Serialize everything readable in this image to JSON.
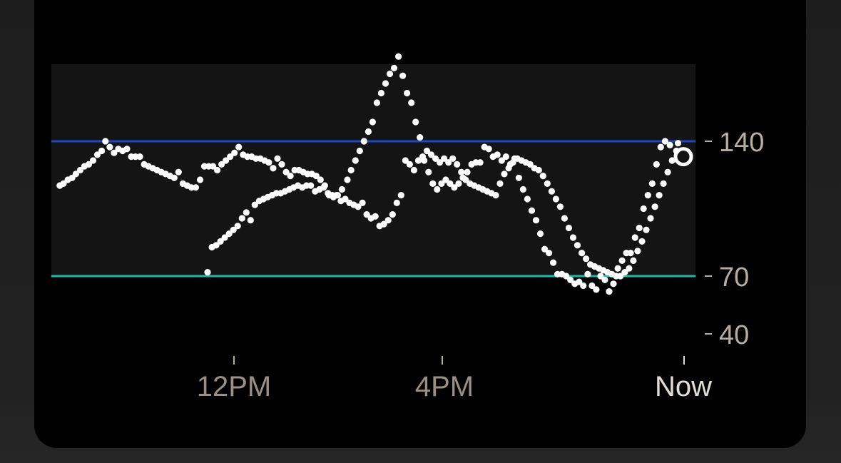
{
  "chart_data": {
    "type": "scatter",
    "title": "",
    "xlabel": "",
    "ylabel": "",
    "y_ticks": [
      "140",
      "70",
      "40"
    ],
    "x_ticks": [
      "12PM",
      "4PM",
      "Now"
    ],
    "ylim": [
      40,
      180
    ],
    "x_domain_hours": [
      8.5,
      21.25
    ],
    "target_range": {
      "low": 70,
      "high": 140
    },
    "colors": {
      "background": "#000000",
      "range_band": "#141414",
      "high_line": "#1f45c9",
      "low_line": "#19b8b1",
      "points": "#ffffff",
      "tick_label": "#b7aea3",
      "now_label": "#e2dcd6"
    },
    "points": [
      [
        8.65,
        117
      ],
      [
        8.72,
        118
      ],
      [
        8.8,
        120
      ],
      [
        8.88,
        121
      ],
      [
        8.95,
        123
      ],
      [
        9.03,
        125
      ],
      [
        9.11,
        127
      ],
      [
        9.19,
        128
      ],
      [
        9.27,
        130
      ],
      [
        9.35,
        133
      ],
      [
        9.43,
        135
      ],
      [
        9.5,
        140
      ],
      [
        9.58,
        137
      ],
      [
        9.66,
        134
      ],
      [
        9.74,
        136
      ],
      [
        9.82,
        135
      ],
      [
        9.9,
        136
      ],
      [
        9.98,
        132
      ],
      [
        10.06,
        132
      ],
      [
        10.14,
        132
      ],
      [
        10.22,
        128
      ],
      [
        10.3,
        127
      ],
      [
        10.38,
        126
      ],
      [
        10.46,
        125
      ],
      [
        10.54,
        124
      ],
      [
        10.62,
        123
      ],
      [
        10.7,
        122
      ],
      [
        10.78,
        121
      ],
      [
        10.86,
        124
      ],
      [
        10.94,
        118
      ],
      [
        11.02,
        117
      ],
      [
        11.1,
        116
      ],
      [
        11.18,
        116
      ],
      [
        11.26,
        120
      ],
      [
        11.34,
        127
      ],
      [
        11.42,
        127
      ],
      [
        11.5,
        127
      ],
      [
        11.58,
        125
      ],
      [
        11.66,
        128
      ],
      [
        11.74,
        130
      ],
      [
        11.82,
        132
      ],
      [
        11.9,
        134
      ],
      [
        11.98,
        137
      ],
      [
        12.06,
        133
      ],
      [
        12.14,
        132
      ],
      [
        12.22,
        132
      ],
      [
        12.3,
        131
      ],
      [
        12.38,
        131
      ],
      [
        12.46,
        130
      ],
      [
        12.54,
        129
      ],
      [
        12.62,
        126
      ],
      [
        12.7,
        131
      ],
      [
        12.78,
        128
      ],
      [
        12.86,
        124
      ],
      [
        12.94,
        122
      ],
      [
        13.02,
        125
      ],
      [
        13.1,
        125
      ],
      [
        13.18,
        124
      ],
      [
        13.26,
        123
      ],
      [
        13.34,
        123
      ],
      [
        13.42,
        122
      ],
      [
        13.5,
        120
      ],
      [
        13.58,
        117
      ],
      [
        13.66,
        112
      ],
      [
        13.74,
        111
      ],
      [
        13.82,
        112
      ],
      [
        13.9,
        115
      ],
      [
        14.0,
        120
      ],
      [
        14.07,
        125
      ],
      [
        14.15,
        130
      ],
      [
        14.23,
        135
      ],
      [
        14.31,
        140
      ],
      [
        14.39,
        145
      ],
      [
        14.47,
        150
      ],
      [
        14.55,
        160
      ],
      [
        14.63,
        165
      ],
      [
        14.71,
        170
      ],
      [
        14.79,
        175
      ],
      [
        14.87,
        178
      ],
      [
        14.95,
        184
      ],
      [
        15.03,
        174
      ],
      [
        15.11,
        165
      ],
      [
        15.19,
        160
      ],
      [
        15.27,
        150
      ],
      [
        15.35,
        142
      ],
      [
        15.43,
        130
      ],
      [
        15.51,
        124
      ],
      [
        15.59,
        118
      ],
      [
        15.67,
        115
      ],
      [
        15.75,
        118
      ],
      [
        15.83,
        120
      ],
      [
        15.91,
        118
      ],
      [
        15.99,
        116
      ],
      [
        16.07,
        118
      ],
      [
        16.15,
        121
      ],
      [
        16.23,
        124
      ],
      [
        16.31,
        128
      ],
      [
        16.39,
        129
      ],
      [
        16.47,
        129
      ],
      [
        16.55,
        137
      ],
      [
        16.63,
        136
      ],
      [
        16.71,
        132
      ],
      [
        16.79,
        133
      ],
      [
        16.87,
        130
      ],
      [
        16.95,
        132
      ],
      [
        17.03,
        128
      ],
      [
        17.11,
        131
      ],
      [
        17.19,
        121
      ],
      [
        17.27,
        115
      ],
      [
        17.35,
        110
      ],
      [
        17.43,
        104
      ],
      [
        17.51,
        99
      ],
      [
        17.59,
        92
      ],
      [
        17.67,
        84
      ],
      [
        17.75,
        82
      ],
      [
        17.83,
        77
      ],
      [
        17.91,
        71
      ],
      [
        17.99,
        71
      ],
      [
        18.07,
        70
      ],
      [
        18.15,
        68
      ],
      [
        18.23,
        66
      ],
      [
        18.31,
        67
      ],
      [
        18.39,
        65
      ],
      [
        18.47,
        71
      ],
      [
        18.55,
        65
      ],
      [
        18.63,
        63
      ],
      [
        18.71,
        70
      ],
      [
        18.79,
        68
      ],
      [
        18.87,
        62
      ],
      [
        18.95,
        66
      ],
      [
        19.03,
        74
      ],
      [
        19.11,
        78
      ],
      [
        19.19,
        82
      ],
      [
        19.27,
        82
      ],
      [
        19.35,
        90
      ],
      [
        19.43,
        95
      ],
      [
        19.51,
        105
      ],
      [
        19.59,
        112
      ],
      [
        19.67,
        118
      ],
      [
        19.75,
        128
      ],
      [
        19.83,
        137
      ],
      [
        19.91,
        140
      ],
      [
        20.0,
        138
      ],
      [
        20.15,
        139
      ],
      [
        11.4,
        72
      ],
      [
        11.48,
        85
      ],
      [
        11.56,
        86
      ],
      [
        11.64,
        88
      ],
      [
        11.72,
        90
      ],
      [
        11.8,
        92
      ],
      [
        11.88,
        94
      ],
      [
        11.96,
        96
      ],
      [
        12.04,
        100
      ],
      [
        12.12,
        103
      ],
      [
        12.2,
        99
      ],
      [
        12.28,
        107
      ],
      [
        12.36,
        109
      ],
      [
        12.44,
        110
      ],
      [
        12.52,
        111
      ],
      [
        12.6,
        112
      ],
      [
        12.68,
        113
      ],
      [
        12.76,
        113
      ],
      [
        12.84,
        114
      ],
      [
        12.92,
        115
      ],
      [
        13.0,
        116
      ],
      [
        13.08,
        117
      ],
      [
        13.16,
        116
      ],
      [
        13.24,
        117
      ],
      [
        13.32,
        117
      ],
      [
        13.4,
        114
      ],
      [
        13.48,
        115
      ],
      [
        13.56,
        116
      ],
      [
        13.64,
        113
      ],
      [
        13.72,
        112
      ],
      [
        13.8,
        112
      ],
      [
        13.88,
        109
      ],
      [
        13.96,
        110
      ],
      [
        14.04,
        108
      ],
      [
        14.12,
        107
      ],
      [
        14.2,
        106
      ],
      [
        14.28,
        108
      ],
      [
        14.36,
        102
      ],
      [
        14.44,
        100
      ],
      [
        14.52,
        101
      ],
      [
        14.6,
        96
      ],
      [
        14.68,
        97
      ],
      [
        14.76,
        99
      ],
      [
        14.84,
        102
      ],
      [
        14.92,
        108
      ],
      [
        15.0,
        112
      ],
      [
        15.08,
        130
      ],
      [
        15.16,
        128
      ],
      [
        15.24,
        125
      ],
      [
        15.32,
        130
      ],
      [
        15.4,
        132
      ],
      [
        15.48,
        135
      ],
      [
        15.56,
        133
      ],
      [
        15.64,
        131
      ],
      [
        15.72,
        129
      ],
      [
        15.8,
        131
      ],
      [
        15.88,
        129
      ],
      [
        15.96,
        131
      ],
      [
        16.04,
        128
      ],
      [
        16.12,
        124
      ],
      [
        16.2,
        120
      ],
      [
        16.28,
        118
      ],
      [
        16.36,
        117
      ],
      [
        16.44,
        116
      ],
      [
        16.52,
        115
      ],
      [
        16.6,
        114
      ],
      [
        16.68,
        113
      ],
      [
        16.76,
        112
      ],
      [
        16.84,
        118
      ],
      [
        16.92,
        123
      ],
      [
        17.0,
        126
      ],
      [
        17.08,
        129
      ],
      [
        17.16,
        131
      ],
      [
        17.24,
        130
      ],
      [
        17.32,
        129
      ],
      [
        17.4,
        128
      ],
      [
        17.48,
        126
      ],
      [
        17.56,
        125
      ],
      [
        17.64,
        122
      ],
      [
        17.72,
        118
      ],
      [
        17.8,
        114
      ],
      [
        17.88,
        110
      ],
      [
        17.96,
        106
      ],
      [
        18.04,
        100
      ],
      [
        18.12,
        95
      ],
      [
        18.2,
        90
      ],
      [
        18.28,
        86
      ],
      [
        18.36,
        82
      ],
      [
        18.44,
        79
      ],
      [
        18.52,
        76
      ],
      [
        18.6,
        75
      ],
      [
        18.68,
        74
      ],
      [
        18.76,
        73
      ],
      [
        18.84,
        72
      ],
      [
        18.92,
        71
      ],
      [
        19.0,
        70
      ],
      [
        19.08,
        70
      ],
      [
        19.16,
        72
      ],
      [
        19.24,
        74
      ],
      [
        19.32,
        78
      ],
      [
        19.4,
        83
      ],
      [
        19.48,
        88
      ],
      [
        19.56,
        94
      ],
      [
        19.64,
        100
      ],
      [
        19.72,
        106
      ],
      [
        19.8,
        112
      ],
      [
        19.88,
        118
      ],
      [
        19.96,
        124
      ],
      [
        20.04,
        130
      ],
      [
        20.12,
        135
      ]
    ],
    "current_point": [
      20.25,
      132
    ]
  }
}
